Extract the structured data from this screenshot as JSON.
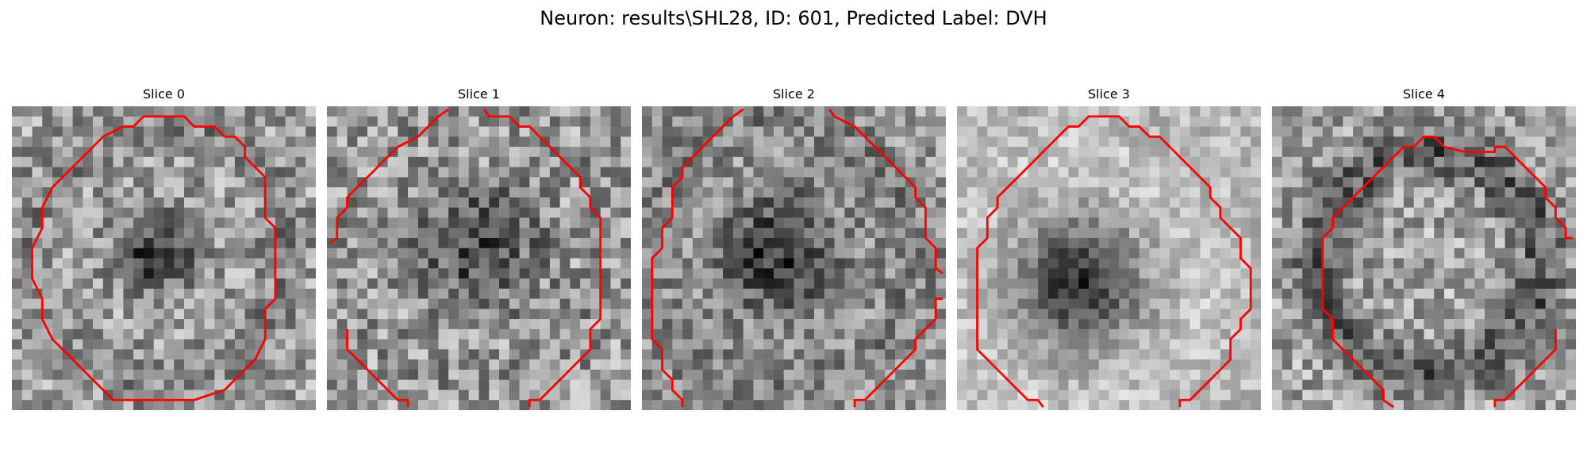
{
  "figure": {
    "title": "Neuron: results\\SHL28, ID: 601, Predicted Label: DVH"
  },
  "slices": [
    {
      "title": "Slice 0"
    },
    {
      "title": "Slice 1"
    },
    {
      "title": "Slice 2"
    },
    {
      "title": "Slice 3"
    },
    {
      "title": "Slice 4"
    }
  ],
  "colors": {
    "contour": "#ff0000",
    "background": "#ffffff"
  }
}
